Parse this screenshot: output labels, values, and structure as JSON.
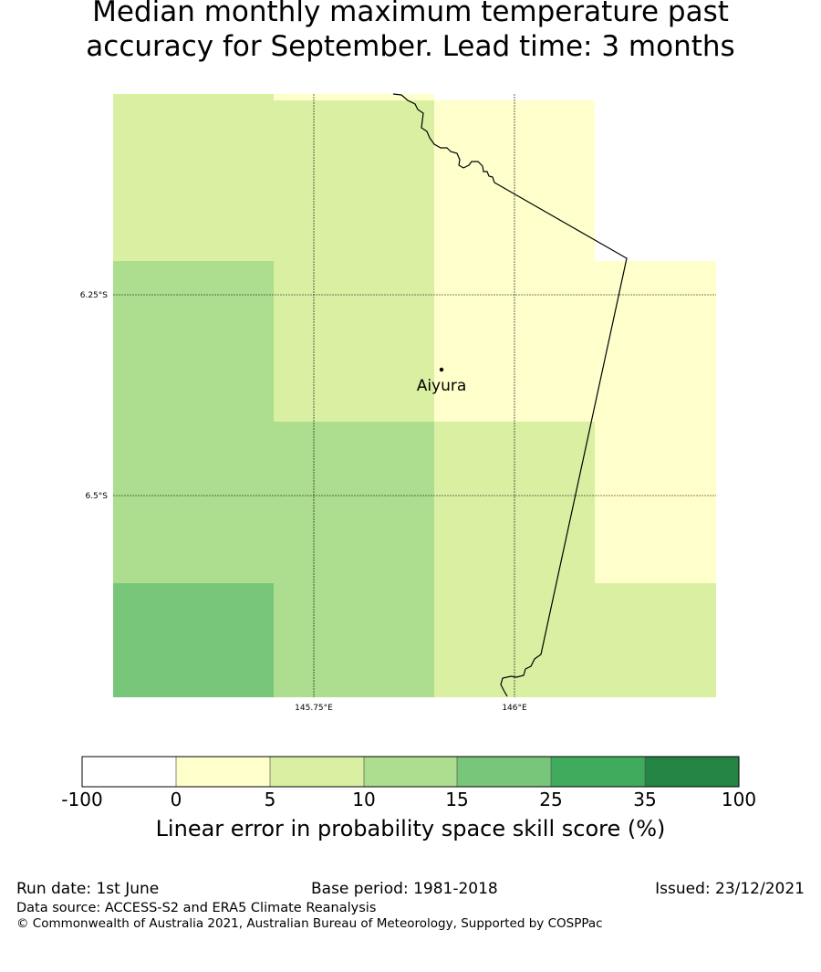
{
  "title_line1": "Median monthly maximum temperature past",
  "title_line2": "accuracy for September. Lead time: 3 months",
  "map": {
    "lon_labels": [
      "145.75°E",
      "146°E"
    ],
    "lat_labels": [
      "6.25°S",
      "6.5°S"
    ],
    "place": {
      "name": "Aiyura"
    }
  },
  "colorbar": {
    "label": "Linear error in probability space skill score (%)",
    "ticks": [
      "-100",
      "0",
      "5",
      "10",
      "15",
      "25",
      "35",
      "100"
    ],
    "colors": [
      "#ffffff",
      "#ffffcc",
      "#d9f0a3",
      "#addd8e",
      "#78c679",
      "#41ab5d",
      "#238443"
    ]
  },
  "grid_colors": {
    "bin_5_10": "#d9f0a3",
    "bin_0_5": "#ffffcc",
    "bin_10_15": "#addd8e",
    "bin_15_25": "#78c679"
  },
  "footer": {
    "run_date": "Run date: 1st June",
    "base_period": "Base period: 1981-2018",
    "issued": "Issued: 23/12/2021",
    "data_source": "Data source: ACCESS-S2 and ERA5 Climate Reanalysis",
    "copyright": "© Commonwealth of Australia 2021, Australian Bureau of Meteorology, Supported by COSPPac"
  }
}
